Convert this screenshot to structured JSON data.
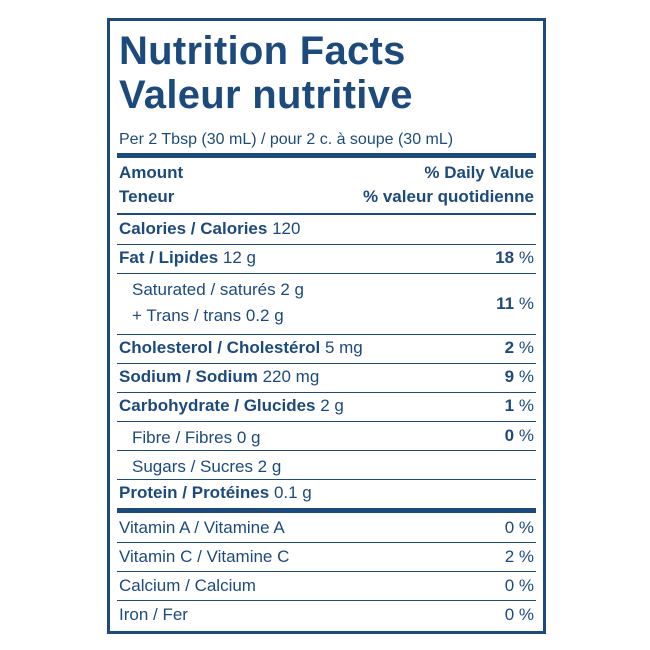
{
  "title": {
    "line1": "Nutrition Facts",
    "line2": "Valeur nutritive"
  },
  "serving": "Per 2 Tbsp (30 mL) / pour 2 c. à soupe (30 mL)",
  "header": {
    "amount": "Amount",
    "amount_fr": "Teneur",
    "dv": "% Daily Value",
    "dv_fr": "% valeur quotidienne"
  },
  "nutrients": [
    {
      "name": "Calories / Calories",
      "amount": "120"
    },
    {
      "name": "Fat / Lipides",
      "amount": "12 g",
      "dv": "18",
      "unit": "%",
      "sub": [
        {
          "lines": [
            "Saturated / saturés 2 g",
            "+ Trans / trans 0.2 g"
          ],
          "dv": "11",
          "unit": "%"
        }
      ]
    },
    {
      "name": "Cholesterol / Cholestérol",
      "amount": "5 mg",
      "dv": "2",
      "unit": "%"
    },
    {
      "name": "Sodium / Sodium",
      "amount": "220 mg",
      "dv": "9",
      "unit": "%"
    },
    {
      "name": "Carbohydrate / Glucides",
      "amount": "2 g",
      "dv": "1",
      "unit": "%",
      "sub": [
        {
          "lines": [
            "Fibre / Fibres 0 g"
          ],
          "dv": "0",
          "unit": "%"
        },
        {
          "lines": [
            "Sugars / Sucres 2 g"
          ]
        }
      ]
    },
    {
      "name": "Protein / Protéines",
      "amount": "0.1 g"
    }
  ],
  "vitamins": [
    {
      "name": "Vitamin A / Vitamine A",
      "dv": "0 %"
    },
    {
      "name": "Vitamin C / Vitamine C",
      "dv": "2 %"
    },
    {
      "name": "Calcium / Calcium",
      "dv": "0 %"
    },
    {
      "name": "Iron / Fer",
      "dv": "0 %"
    }
  ]
}
